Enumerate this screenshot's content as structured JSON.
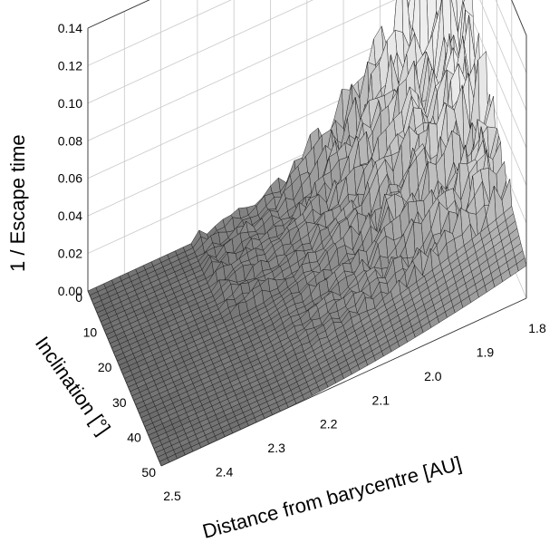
{
  "chart_data": {
    "type": "surface3d",
    "title": "",
    "zlabel": "1 / Escape time",
    "ylabel": "Inclination [°]",
    "xlabel": "Distance from barycentre [AU]",
    "x_ticks": [
      "2.5",
      "2.4",
      "2.3",
      "2.2",
      "2.1",
      "2.0",
      "1.9",
      "1.8"
    ],
    "y_ticks": [
      "0",
      "10",
      "20",
      "30",
      "40",
      "50"
    ],
    "z_ticks": [
      "0.00",
      "0.02",
      "0.04",
      "0.06",
      "0.08",
      "0.10",
      "0.12",
      "0.14"
    ],
    "xlim": [
      2.5,
      1.8
    ],
    "ylim": [
      0,
      50
    ],
    "zlim": [
      0,
      0.14
    ],
    "grid": true,
    "surface_description": "Near zero for distance > 2.2 AU; rises sharply with jagged peaks toward 1.8–1.9 AU, largest (~0.12) at low inclination",
    "colors": {
      "surface_low": "#6f6f6f",
      "surface_high": "#eeeeee",
      "mesh": "#1a1a1a",
      "grid": "#c8c8c8"
    }
  }
}
